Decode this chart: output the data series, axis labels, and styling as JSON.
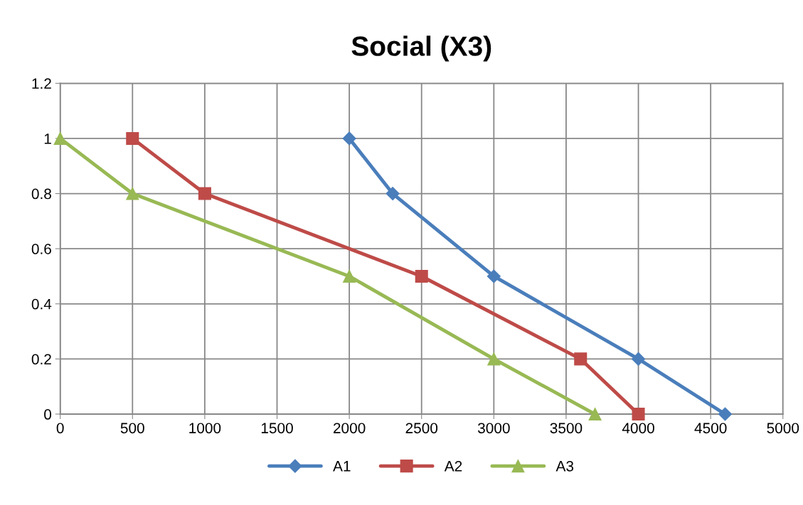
{
  "chart_data": {
    "type": "line",
    "title": "Social (X3)",
    "series": [
      {
        "name": "A1",
        "color": "#4a7ebb",
        "marker": "diamond",
        "x": [
          2000,
          2300,
          3000,
          4000,
          4600
        ],
        "values": [
          1,
          0.8,
          0.5,
          0.2,
          0
        ]
      },
      {
        "name": "A2",
        "color": "#be4b48",
        "marker": "square",
        "x": [
          500,
          1000,
          2500,
          3600,
          4000
        ],
        "values": [
          1,
          0.8,
          0.5,
          0.2,
          0
        ]
      },
      {
        "name": "A3",
        "color": "#98b954",
        "marker": "triangle",
        "x": [
          0,
          500,
          2000,
          3000,
          3700
        ],
        "values": [
          1,
          0.8,
          0.5,
          0.2,
          0
        ]
      }
    ],
    "xlim": [
      0,
      5000
    ],
    "xticks": [
      0,
      500,
      1000,
      1500,
      2000,
      2500,
      3000,
      3500,
      4000,
      4500,
      5000
    ],
    "ylim": [
      0,
      1.2
    ],
    "yticks": [
      0,
      0.2,
      0.4,
      0.6,
      0.8,
      1,
      1.2
    ],
    "grid": true,
    "legend": "bottom",
    "line_style": "solid"
  }
}
